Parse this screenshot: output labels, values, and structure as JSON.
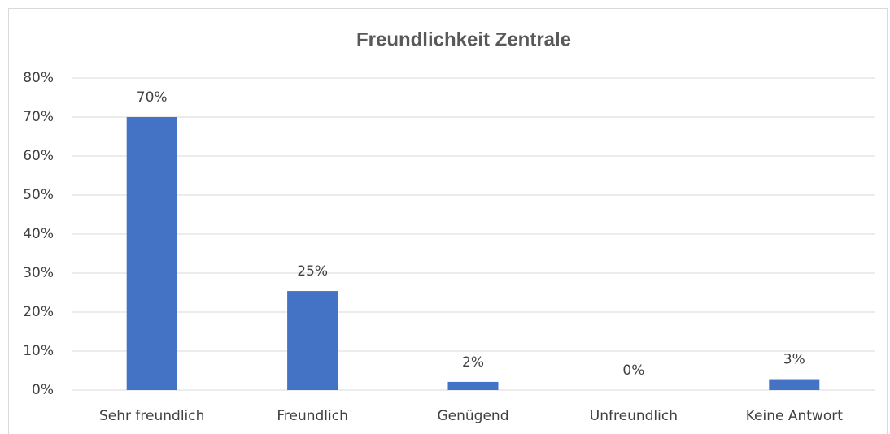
{
  "chart_data": {
    "type": "bar",
    "title": "Freundlichkeit Zentrale",
    "categories": [
      "Sehr freundlich",
      "Freundlich",
      "Genügend",
      "Unfreundlich",
      "Keine Antwort"
    ],
    "values": [
      70,
      25.4,
      2.1,
      0,
      2.8
    ],
    "value_labels": [
      "70%",
      "25%",
      "2%",
      "0%",
      "3%"
    ],
    "color": "#4472c4",
    "ylim": [
      0,
      80
    ],
    "yticks": [
      {
        "value": 0,
        "label": "0%"
      },
      {
        "value": 10,
        "label": "10%"
      },
      {
        "value": 20,
        "label": "20%"
      },
      {
        "value": 30,
        "label": "30%"
      },
      {
        "value": 40,
        "label": "40%"
      },
      {
        "value": 50,
        "label": "50%"
      },
      {
        "value": 60,
        "label": "60%"
      },
      {
        "value": 70,
        "label": "70%"
      },
      {
        "value": 80,
        "label": "80%"
      }
    ],
    "grid": true
  }
}
